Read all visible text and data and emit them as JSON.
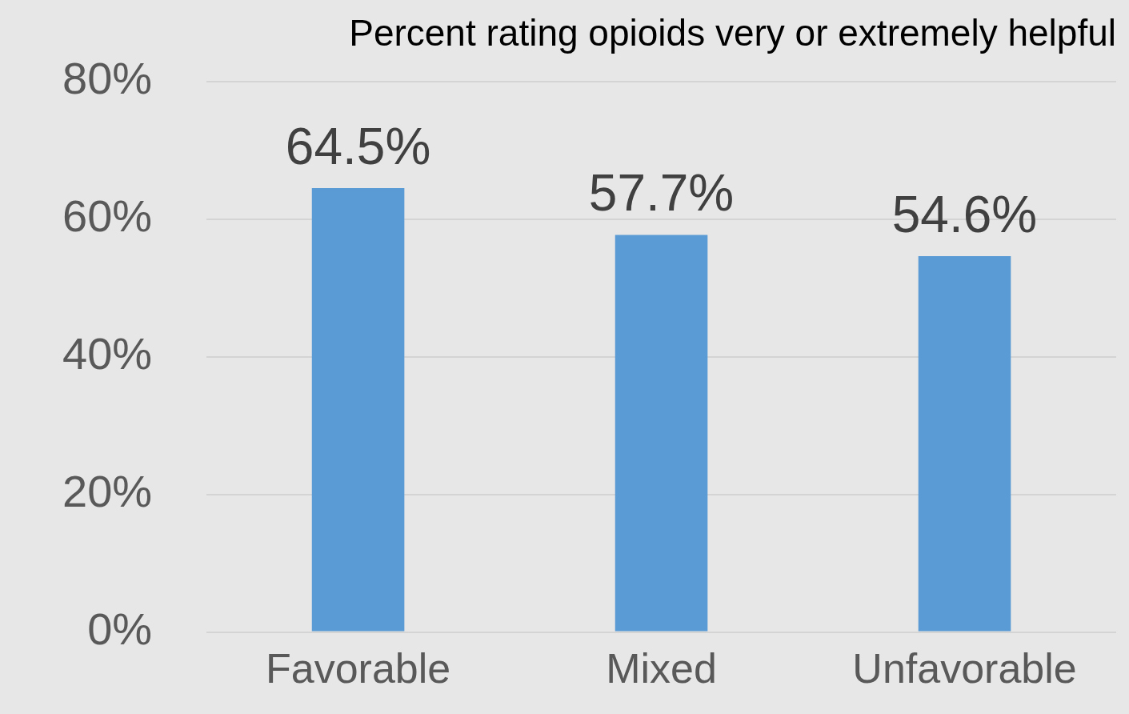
{
  "chart_data": {
    "type": "bar",
    "title": "Percent rating opioids very or extremely helpful",
    "categories": [
      "Favorable",
      "Mixed",
      "Unfavorable"
    ],
    "values": [
      64.5,
      57.7,
      54.6
    ],
    "value_labels": [
      "64.5%",
      "57.7%",
      "54.6%"
    ],
    "color": "#5b9bd5",
    "ylim": [
      0,
      80
    ],
    "yticks": [
      {
        "value": 0,
        "label": "0%"
      },
      {
        "value": 20,
        "label": "20%"
      },
      {
        "value": 40,
        "label": "40%"
      },
      {
        "value": 60,
        "label": "60%"
      },
      {
        "value": 80,
        "label": "80%"
      }
    ],
    "grid": "y",
    "legend": false
  }
}
